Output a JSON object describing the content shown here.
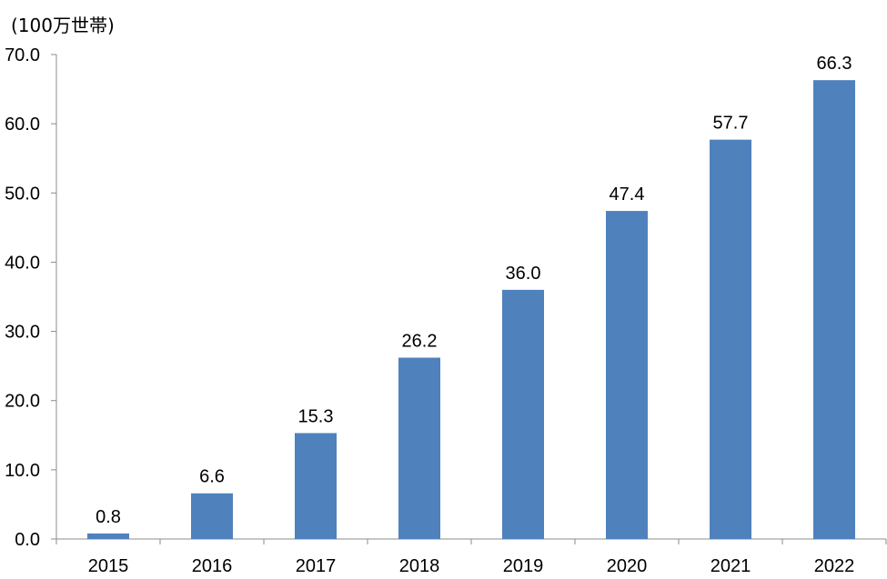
{
  "chart_data": {
    "type": "bar",
    "unit_label": "(100万世帯)",
    "categories": [
      "2015",
      "2016",
      "2017",
      "2018",
      "2019",
      "2020",
      "2021",
      "2022"
    ],
    "values": [
      0.8,
      6.6,
      15.3,
      26.2,
      36.0,
      47.4,
      57.7,
      66.3
    ],
    "data_labels": [
      "0.8",
      "6.6",
      "15.3",
      "26.2",
      "36.0",
      "47.4",
      "57.7",
      "66.3"
    ],
    "yticks": [
      "0.0",
      "10.0",
      "20.0",
      "30.0",
      "40.0",
      "50.0",
      "60.0",
      "70.0"
    ],
    "ylim": [
      0,
      70
    ],
    "bar_color": "#4f81bd",
    "grid": false,
    "legend": "none"
  }
}
